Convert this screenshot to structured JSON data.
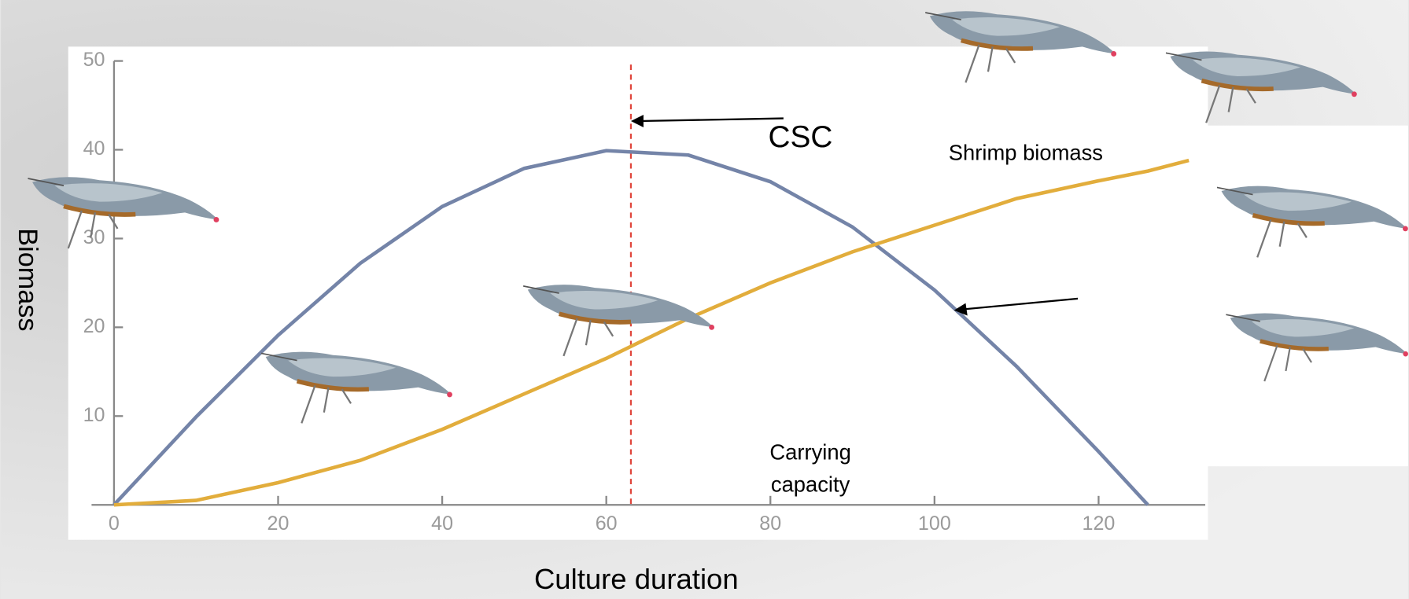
{
  "chart_data": {
    "type": "line",
    "x_label": "Culture duration",
    "y_label": "Biomass",
    "x": [
      0,
      10,
      20,
      30,
      40,
      50,
      60,
      70,
      80,
      90,
      100,
      110,
      120,
      126,
      131
    ],
    "series": [
      {
        "color": "#7484a8",
        "values": [
          0,
          9.9,
          19.1,
          27.2,
          33.6,
          37.9,
          39.9,
          39.4,
          36.4,
          31.3,
          24.2,
          15.6,
          6.0,
          0,
          null
        ]
      },
      {
        "color": "#e2ad3c",
        "values": [
          0,
          0.5,
          2.5,
          5,
          8.5,
          12.5,
          16.5,
          21,
          25,
          28.5,
          31.5,
          34.5,
          36.5,
          37.6,
          38.8
        ]
      }
    ],
    "xlim": [
      0,
      133
    ],
    "ylim": [
      0,
      50
    ],
    "xticks": [
      0,
      20,
      40,
      60,
      80,
      100,
      120
    ],
    "yticks": [
      0,
      10,
      20,
      30,
      40,
      50
    ],
    "vline": {
      "x": 63,
      "color": "#e0463c"
    },
    "annotations": {
      "csc": "CSC",
      "shrimp_biomass": "Shrimp biomass",
      "carrying_capacity_1": "Carrying",
      "carrying_capacity_2": "capacity"
    }
  }
}
